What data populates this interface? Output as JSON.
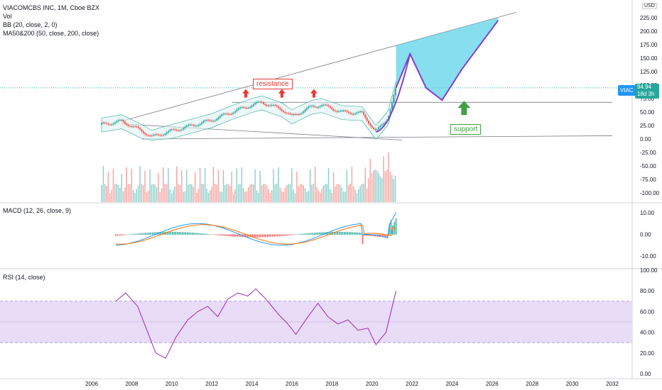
{
  "header": {
    "symbol_line": "VIACOMCBS INC, 1M, Cboe BZX",
    "vol_label": "Vol",
    "bb_label": "BB (20, close, 2, 0)",
    "ma_label": "MA50&200 (50, close, 200, close)"
  },
  "panes": {
    "macd_label": "MACD (12, 26, close, 9)",
    "rsi_label": "RSI (14, close)"
  },
  "currency_button": "USD",
  "annotations": {
    "resistance": "resistance",
    "support": "support"
  },
  "price_marker": {
    "ticker": "VIAC",
    "price": "94.94",
    "countdown": "18d 3h"
  },
  "colors": {
    "up": "#26a69a",
    "down": "#ef5350",
    "trend_line": "#787b86",
    "projection_fill": "#5fd3e8",
    "projection_line": "#7e3fd1",
    "rsi_band": "#e9dcf7",
    "rsi_line": "#9c27b0",
    "macd_line": "#2196f3",
    "signal_line": "#ff6d00",
    "resistance": "#e53935",
    "support": "#43a047"
  },
  "chart_data": [
    {
      "type": "line",
      "name": "price",
      "y_axis_ticks": [
        "225.00",
        "200.00",
        "175.00",
        "150.00",
        "125.00",
        "100.00",
        "75.00",
        "50.00",
        "25.00",
        "0.00",
        "-25.00",
        "-50.00",
        "-75.00",
        "-100.00"
      ],
      "x": [
        2006.5,
        2007.5,
        2008.5,
        2009.0,
        2010.0,
        2011.0,
        2012.0,
        2013.0,
        2014.0,
        2014.5,
        2015.5,
        2016.0,
        2017.0,
        2017.5,
        2018.5,
        2019.5,
        2020.2,
        2020.8,
        2021.2
      ],
      "y": [
        27,
        33,
        15,
        4,
        15,
        25,
        35,
        50,
        63,
        68,
        55,
        42,
        60,
        63,
        50,
        48,
        13,
        40,
        95
      ],
      "projection_x": [
        2021.2,
        2021.9,
        2022.7,
        2023.5,
        2024.5,
        2025.5,
        2026.3
      ],
      "projection_y": [
        95,
        158,
        95,
        72,
        130,
        180,
        220
      ],
      "ylim": [
        -115,
        235
      ]
    },
    {
      "type": "bar",
      "name": "volume"
    },
    {
      "type": "line",
      "name": "MACD",
      "y_axis_ticks": [
        "10.00",
        "0.00",
        "-10.00"
      ],
      "ylim": [
        -15,
        15
      ]
    },
    {
      "type": "line",
      "name": "RSI",
      "y_axis_ticks": [
        "100.00",
        "80.00",
        "60.00",
        "40.00",
        "20.00",
        "0.00"
      ],
      "x": [
        2007.2,
        2007.7,
        2008.3,
        2008.8,
        2009.2,
        2009.7,
        2010.2,
        2010.8,
        2011.3,
        2011.8,
        2012.3,
        2012.8,
        2013.3,
        2013.8,
        2014.2,
        2014.5,
        2014.8,
        2015.3,
        2015.8,
        2016.2,
        2016.8,
        2017.3,
        2017.8,
        2018.3,
        2018.8,
        2019.3,
        2019.8,
        2020.2,
        2020.7,
        2021.2
      ],
      "y": [
        70,
        78,
        65,
        40,
        20,
        15,
        35,
        52,
        60,
        65,
        55,
        72,
        78,
        75,
        82,
        76,
        70,
        58,
        48,
        38,
        55,
        68,
        55,
        48,
        52,
        42,
        44,
        28,
        40,
        80
      ],
      "ylim": [
        0,
        100
      ],
      "band": [
        30,
        70
      ]
    }
  ],
  "x_axis_ticks": [
    "2006",
    "2008",
    "2010",
    "2012",
    "2014",
    "2016",
    "2018",
    "2020",
    "2022",
    "2024",
    "2026",
    "2028",
    "2030",
    "2032"
  ]
}
